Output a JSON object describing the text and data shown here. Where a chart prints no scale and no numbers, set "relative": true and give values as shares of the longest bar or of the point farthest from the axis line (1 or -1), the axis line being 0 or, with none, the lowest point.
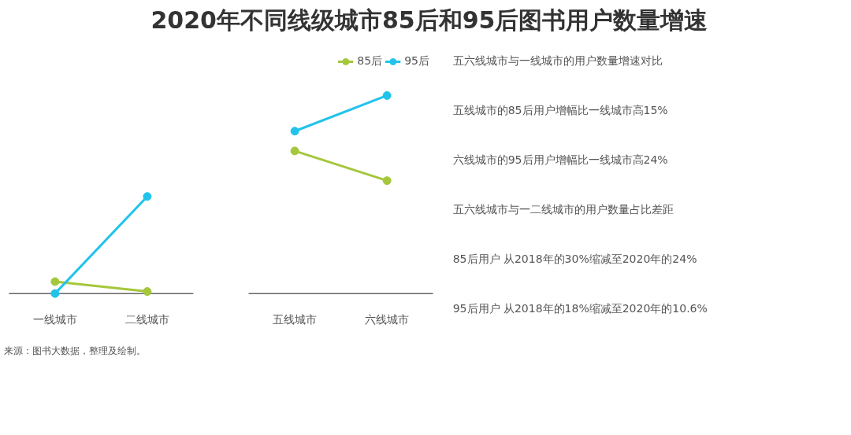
{
  "chart_data": [
    {
      "type": "line",
      "title": "2020年不同线级城市85后和95后图书用户数量增速",
      "relative": true,
      "categories": [
        "一线城市",
        "二线城市",
        "五线城市",
        "六线城市"
      ],
      "series": [
        {
          "name": "85后",
          "color": "#a5c73b",
          "values": [
            0.06,
            0.01,
            null,
            null
          ]
        },
        {
          "name": "95后",
          "color": "#22c3eb",
          "values": [
            0,
            0.49,
            null,
            null
          ]
        },
        {
          "color": "#a5c73b",
          "values": [
            null,
            null,
            0.72,
            0.57
          ]
        },
        {
          "color": "#22c3eb",
          "values": [
            null,
            null,
            0.82,
            1
          ]
        }
      ],
      "marker": "circle",
      "legend": "top",
      "grid": false,
      "tick_labels": "x",
      "annotations": [
        "来源：图书大数据，整理及绘制。"
      ]
    },
    {
      "type": "other",
      "annotations": [
        "五六线城市与一线城市的用户数量增速对比",
        "五线城市的85后用户增幅比一线城市高15%",
        "六线城市的95后用户增幅比一线城市高24%",
        "五六线城市与一二线城市的用户数量占比差距",
        "85后用户 从2018年的30%缩减至2020年的24%",
        "95后用户 从2018年的18%缩减至2020年的10.6%"
      ]
    }
  ]
}
